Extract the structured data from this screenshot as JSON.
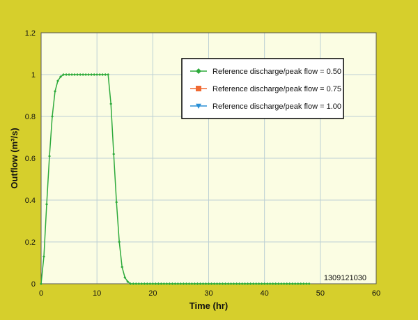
{
  "chart_data": {
    "type": "line",
    "title": "",
    "xlabel": "Time (hr)",
    "ylabel": "Outflow (m³/s)",
    "xlim": [
      0,
      60
    ],
    "ylim": [
      0,
      1.2
    ],
    "xticks": [
      "0",
      "10",
      "20",
      "30",
      "40",
      "50",
      "60"
    ],
    "yticks": [
      "0",
      "0.2",
      "0.4",
      "0.6",
      "0.8",
      "1",
      "1.2"
    ],
    "grid": true,
    "legend_position": "top-right",
    "annotation": "1309121030",
    "series": [
      {
        "name": "Reference discharge/peak flow = 0.50",
        "color": "#2eaa3c",
        "marker": "diamond",
        "x": [
          0,
          0.5,
          1,
          1.5,
          2,
          2.5,
          3,
          3.5,
          4,
          4.5,
          5,
          5.5,
          6,
          6.5,
          7,
          7.5,
          8,
          8.5,
          9,
          9.5,
          10,
          10.5,
          11,
          11.5,
          12,
          12.5,
          13,
          13.5,
          14,
          14.5,
          15,
          15.5,
          16,
          16.5,
          17,
          17.5,
          18,
          18.5,
          19,
          19.5,
          20,
          20.5,
          21,
          21.5,
          22,
          22.5,
          23,
          23.5,
          24,
          24.5,
          25,
          25.5,
          26,
          26.5,
          27,
          27.5,
          28,
          28.5,
          29,
          29.5,
          30,
          30.5,
          31,
          31.5,
          32,
          32.5,
          33,
          33.5,
          34,
          34.5,
          35,
          35.5,
          36,
          36.5,
          37,
          37.5,
          38,
          38.5,
          39,
          39.5,
          40,
          40.5,
          41,
          41.5,
          42,
          42.5,
          43,
          43.5,
          44,
          44.5,
          45,
          45.5,
          46,
          46.5,
          47,
          47.5,
          48
        ],
        "y": [
          0,
          0.13,
          0.38,
          0.61,
          0.8,
          0.92,
          0.97,
          0.99,
          1,
          1,
          1,
          1,
          1,
          1,
          1,
          1,
          1,
          1,
          1,
          1,
          1,
          1,
          1,
          1,
          1,
          0.86,
          0.62,
          0.39,
          0.2,
          0.08,
          0.03,
          0.01,
          0,
          0,
          0,
          0,
          0,
          0,
          0,
          0,
          0,
          0,
          0,
          0,
          0,
          0,
          0,
          0,
          0,
          0,
          0,
          0,
          0,
          0,
          0,
          0,
          0,
          0,
          0,
          0,
          0,
          0,
          0,
          0,
          0,
          0,
          0,
          0,
          0,
          0,
          0,
          0,
          0,
          0,
          0,
          0,
          0,
          0,
          0,
          0,
          0,
          0,
          0,
          0,
          0,
          0,
          0,
          0,
          0,
          0,
          0,
          0,
          0,
          0,
          0,
          0,
          0
        ]
      },
      {
        "name": "Reference discharge/peak flow = 0.75",
        "color": "#f06a33",
        "marker": "square",
        "x": [],
        "y": []
      },
      {
        "name": "Reference discharge/peak flow = 1.00",
        "color": "#2a8fd6",
        "marker": "triangle-down",
        "x": [],
        "y": []
      }
    ]
  }
}
